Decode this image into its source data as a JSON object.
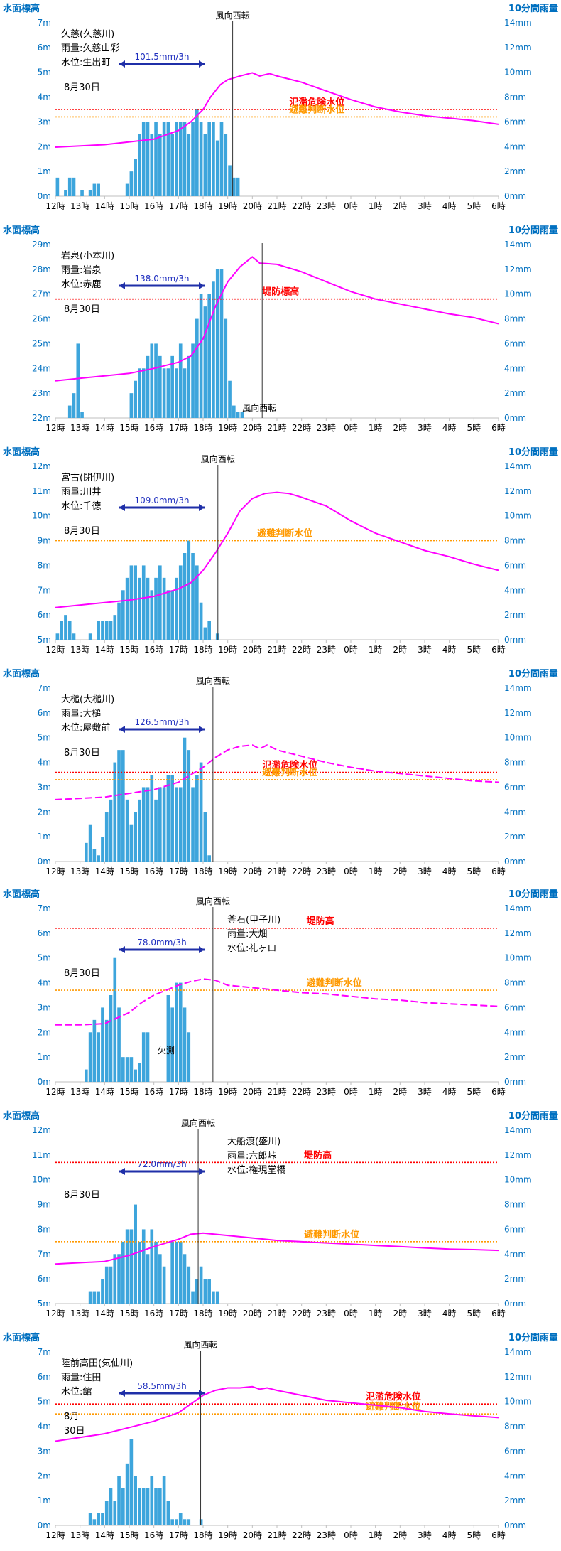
{
  "x_ticks": [
    "12時",
    "13時",
    "14時",
    "15時",
    "16時",
    "17時",
    "18時",
    "19時",
    "20時",
    "21時",
    "22時",
    "23時",
    "0時",
    "1時",
    "2時",
    "3時",
    "4時",
    "5時",
    "6時"
  ],
  "labels": {
    "wl_axis": "水面標高",
    "rain_axis": "10分間雨量",
    "wind": "風向西転",
    "date": "8月30日",
    "missing": "欠測"
  },
  "colors": {
    "bar": "#3da5dc",
    "level": "#ff00ff",
    "danger": "#ff0000",
    "judge": "#ff9900",
    "axis_title": "#0070c0",
    "arrow": "#1f2fa8",
    "rate": "#1f2fbf",
    "grid": "#d9d9d9"
  },
  "chart_data": [
    {
      "type": "bar",
      "station": [
        "久慈(久慈川)",
        "雨量:久慈山彩",
        "水位:生出町"
      ],
      "date_label": "8月30日",
      "rate_label": "101.5mm/3h",
      "wl_range": [
        0,
        7
      ],
      "wl_ticks": [
        "0m",
        "1m",
        "2m",
        "3m",
        "4m",
        "5m",
        "6m",
        "7m"
      ],
      "rain_range": [
        0,
        14
      ],
      "rain_ticks": [
        "0mm",
        "2mm",
        "4mm",
        "6mm",
        "8mm",
        "10mm",
        "12mm",
        "14mm"
      ],
      "rain_start_hour": 12.0,
      "rain_mm": [
        1.5,
        0,
        0.5,
        1.5,
        1.5,
        0,
        0.5,
        0,
        0.5,
        1,
        1,
        0,
        0,
        0,
        0,
        0,
        0,
        1,
        2,
        3,
        5,
        6,
        6,
        5,
        6,
        5,
        6,
        6,
        5,
        6,
        6,
        6,
        5,
        6,
        7,
        6,
        5,
        6,
        6,
        4.5,
        6,
        5,
        2.5,
        1.5,
        1.5
      ],
      "level": [
        [
          12,
          1.98
        ],
        [
          14,
          2.08
        ],
        [
          16,
          2.3
        ],
        [
          17,
          2.65
        ],
        [
          17.5,
          3.0
        ],
        [
          18,
          3.5
        ],
        [
          18.3,
          4.0
        ],
        [
          18.7,
          4.5
        ],
        [
          19,
          4.7
        ],
        [
          19.5,
          4.85
        ],
        [
          20,
          4.98
        ],
        [
          20.3,
          4.85
        ],
        [
          20.7,
          4.95
        ],
        [
          21,
          4.85
        ],
        [
          22,
          4.6
        ],
        [
          23,
          4.25
        ],
        [
          0,
          3.9
        ],
        [
          1,
          3.6
        ],
        [
          2,
          3.4
        ],
        [
          3,
          3.25
        ],
        [
          4,
          3.15
        ],
        [
          5,
          3.05
        ],
        [
          6,
          2.9
        ]
      ],
      "thresholds": [
        {
          "name": "氾濫危険水位",
          "value": 3.5,
          "color": "danger",
          "label_hour": 21.5
        },
        {
          "name": "避難判断水位",
          "value": 3.2,
          "color": "judge",
          "label_hour": 21.5
        }
      ],
      "wind_hour": 19.2
    },
    {
      "type": "bar",
      "station": [
        "岩泉(小本川)",
        "雨量:岩泉",
        "水位:赤鹿"
      ],
      "date_label": "8月30日",
      "rate_label": "138.0mm/3h",
      "wl_range": [
        22,
        29
      ],
      "wl_ticks": [
        "22m",
        "23m",
        "24m",
        "25m",
        "26m",
        "27m",
        "28m",
        "29m"
      ],
      "rain_range": [
        0,
        14
      ],
      "rain_ticks": [
        "0mm",
        "2mm",
        "4mm",
        "6mm",
        "8mm",
        "10mm",
        "12mm",
        "14mm"
      ],
      "rain_start_hour": 12.0,
      "rain_mm": [
        0,
        0,
        0,
        1,
        2,
        6,
        0.5,
        0,
        0,
        0,
        0,
        0,
        0,
        0,
        0,
        0,
        0,
        0,
        2,
        3,
        4,
        4,
        5,
        6,
        6,
        5,
        4,
        4,
        5,
        4,
        6,
        4,
        5,
        6,
        8,
        10,
        9,
        10,
        11,
        12,
        12,
        8,
        3,
        1,
        0.5,
        0.5
      ],
      "level": [
        [
          12,
          23.5
        ],
        [
          14,
          23.7
        ],
        [
          15,
          23.8
        ],
        [
          16,
          24.0
        ],
        [
          17,
          24.25
        ],
        [
          17.5,
          24.5
        ],
        [
          18,
          25.2
        ],
        [
          18.5,
          26.5
        ],
        [
          19,
          27.5
        ],
        [
          19.5,
          28.1
        ],
        [
          20,
          28.5
        ],
        [
          20.3,
          28.25
        ],
        [
          21,
          28.2
        ],
        [
          22,
          27.9
        ],
        [
          23,
          27.5
        ],
        [
          0,
          27.1
        ],
        [
          1,
          26.8
        ],
        [
          2,
          26.6
        ],
        [
          3,
          26.4
        ],
        [
          4,
          26.2
        ],
        [
          5,
          26.05
        ],
        [
          6,
          25.8
        ]
      ],
      "thresholds": [
        {
          "name": "堤防標高",
          "value": 26.8,
          "color": "danger",
          "label_hour": 20.4
        }
      ],
      "wind_hour": 20.4,
      "wind_label_below": true
    },
    {
      "type": "bar",
      "station": [
        "宮古(閉伊川)",
        "雨量:川井",
        "水位:千徳"
      ],
      "date_label": "8月30日",
      "rate_label": "109.0mm/3h",
      "wl_range": [
        5,
        12
      ],
      "wl_ticks": [
        "5m",
        "6m",
        "7m",
        "8m",
        "9m",
        "10m",
        "11m",
        "12m"
      ],
      "rain_range": [
        0,
        14
      ],
      "rain_ticks": [
        "0mm",
        "2mm",
        "4mm",
        "6mm",
        "8mm",
        "10mm",
        "12mm",
        "14mm"
      ],
      "rain_start_hour": 12.0,
      "rain_mm": [
        0.5,
        1.5,
        2,
        1.5,
        0.5,
        0,
        0,
        0,
        0.5,
        0,
        1.5,
        1.5,
        1.5,
        1.5,
        2,
        3,
        4,
        5,
        6,
        6,
        5,
        6,
        5,
        4,
        5,
        6,
        5,
        4,
        4,
        5,
        6,
        7,
        8,
        7,
        6,
        3,
        1,
        1.5,
        0,
        0.5
      ],
      "level": [
        [
          12,
          6.3
        ],
        [
          14,
          6.5
        ],
        [
          15,
          6.6
        ],
        [
          16,
          6.75
        ],
        [
          17,
          7.05
        ],
        [
          17.5,
          7.3
        ],
        [
          18,
          7.8
        ],
        [
          18.5,
          8.5
        ],
        [
          19,
          9.3
        ],
        [
          19.5,
          10.2
        ],
        [
          20,
          10.7
        ],
        [
          20.5,
          10.9
        ],
        [
          21,
          10.95
        ],
        [
          21.5,
          10.9
        ],
        [
          22,
          10.75
        ],
        [
          23,
          10.4
        ],
        [
          0,
          9.8
        ],
        [
          1,
          9.3
        ],
        [
          2,
          8.95
        ],
        [
          3,
          8.6
        ],
        [
          4,
          8.35
        ],
        [
          5,
          8.05
        ],
        [
          6,
          7.8
        ]
      ],
      "thresholds": [
        {
          "name": "避難判断水位",
          "value": 9.0,
          "color": "judge",
          "label_hour": 20.2
        }
      ],
      "wind_hour": 18.6
    },
    {
      "type": "bar",
      "station": [
        "大槌(大槌川)",
        "雨量:大槌",
        "水位:屋敷前"
      ],
      "date_label": "8月30日",
      "rate_label": "126.5mm/3h",
      "wl_range": [
        0,
        7
      ],
      "wl_ticks": [
        "0m",
        "1m",
        "2m",
        "3m",
        "4m",
        "5m",
        "6m",
        "7m"
      ],
      "rain_range": [
        0,
        14
      ],
      "rain_ticks": [
        "0mm",
        "2mm",
        "4mm",
        "6mm",
        "8mm",
        "10mm",
        "12mm",
        "14mm"
      ],
      "rain_start_hour": 12.0,
      "rain_mm": [
        0,
        0,
        0,
        0,
        0,
        0,
        0,
        1.5,
        3,
        1,
        0.5,
        2,
        4,
        5,
        8,
        9,
        9,
        5,
        3,
        4,
        5,
        6,
        6,
        7,
        5,
        6,
        6,
        7,
        7,
        6,
        6,
        10,
        9,
        6,
        7,
        8,
        4,
        0.5
      ],
      "level_dashed": true,
      "level": [
        [
          12,
          2.5
        ],
        [
          14,
          2.6
        ],
        [
          15,
          2.75
        ],
        [
          16,
          2.9
        ],
        [
          17,
          3.2
        ],
        [
          17.5,
          3.5
        ],
        [
          18,
          3.8
        ],
        [
          18.5,
          4.2
        ],
        [
          19,
          4.5
        ],
        [
          19.5,
          4.65
        ],
        [
          20,
          4.7
        ],
        [
          20.3,
          4.55
        ],
        [
          20.6,
          4.7
        ],
        [
          21,
          4.5
        ],
        [
          22,
          4.25
        ],
        [
          23,
          4.0
        ],
        [
          0,
          3.8
        ],
        [
          1,
          3.65
        ],
        [
          2,
          3.55
        ],
        [
          3,
          3.45
        ],
        [
          4,
          3.35
        ],
        [
          5,
          3.25
        ],
        [
          6,
          3.2
        ]
      ],
      "thresholds": [
        {
          "name": "氾濫危険水位",
          "value": 3.6,
          "color": "danger",
          "label_hour": 20.4
        },
        {
          "name": "避難判断水位",
          "value": 3.3,
          "color": "judge",
          "label_hour": 20.4
        }
      ],
      "wind_hour": 18.4
    },
    {
      "type": "bar",
      "station": [
        "釜石(甲子川)",
        "雨量:大畑",
        "水位:礼ヶロ"
      ],
      "date_label": "8月30日",
      "rate_label": "78.0mm/3h",
      "wl_range": [
        0,
        7
      ],
      "wl_ticks": [
        "0m",
        "1m",
        "2m",
        "3m",
        "4m",
        "5m",
        "6m",
        "7m"
      ],
      "rain_range": [
        0,
        14
      ],
      "rain_ticks": [
        "0mm",
        "2mm",
        "4mm",
        "6mm",
        "8mm",
        "10mm",
        "12mm",
        "14mm"
      ],
      "rain_start_hour": 12.0,
      "rain_mm": [
        0,
        0,
        0,
        0,
        0,
        0,
        0,
        1,
        4,
        5,
        4,
        6,
        5,
        7,
        10,
        6,
        2,
        2,
        2,
        1,
        1.5,
        4,
        4,
        0,
        0,
        0,
        0,
        7,
        6,
        8,
        8,
        6,
        4
      ],
      "missing_hour": 16.5,
      "level_dashed": true,
      "level": [
        [
          12,
          2.3
        ],
        [
          13,
          2.3
        ],
        [
          14,
          2.35
        ],
        [
          15,
          2.8
        ],
        [
          15.5,
          3.2
        ],
        [
          16,
          3.5
        ],
        [
          16.5,
          3.7
        ],
        [
          17,
          3.9
        ],
        [
          17.5,
          4.05
        ],
        [
          18,
          4.15
        ],
        [
          18.5,
          4.1
        ],
        [
          19,
          3.9
        ],
        [
          20,
          3.8
        ],
        [
          21,
          3.7
        ],
        [
          22,
          3.6
        ],
        [
          23,
          3.55
        ],
        [
          0,
          3.45
        ],
        [
          1,
          3.35
        ],
        [
          2,
          3.3
        ],
        [
          3,
          3.2
        ],
        [
          4,
          3.15
        ],
        [
          5,
          3.1
        ],
        [
          6,
          3.05
        ]
      ],
      "thresholds": [
        {
          "name": "堤防高",
          "value": 6.2,
          "color": "danger",
          "label_hour": 22.2
        },
        {
          "name": "避難判断水位",
          "value": 3.7,
          "color": "judge",
          "label_hour": 22.2
        }
      ],
      "wind_hour": 18.4
    },
    {
      "type": "bar",
      "station": [
        "大船渡(盛川)",
        "雨量:六郎峠",
        "水位:権現堂橋"
      ],
      "date_label": "8月30日",
      "rate_label": "72.0mm/3h",
      "wl_range": [
        5,
        12
      ],
      "wl_ticks": [
        "5m",
        "6m",
        "7m",
        "8m",
        "9m",
        "10m",
        "11m",
        "12m"
      ],
      "rain_range": [
        0,
        14
      ],
      "rain_ticks": [
        "0mm",
        "2mm",
        "4mm",
        "6mm",
        "8mm",
        "10mm",
        "12mm",
        "14mm"
      ],
      "rain_start_hour": 12.0,
      "rain_mm": [
        0,
        0,
        0,
        0,
        0,
        0,
        0,
        0,
        1,
        1,
        1,
        2,
        3,
        3,
        4,
        4,
        5,
        6,
        6,
        8,
        5,
        6,
        4,
        6,
        5,
        4,
        3,
        0,
        5,
        5,
        5,
        4,
        3,
        1,
        2,
        3,
        2,
        2,
        1,
        1
      ],
      "level": [
        [
          12,
          6.6
        ],
        [
          14,
          6.7
        ],
        [
          15,
          6.95
        ],
        [
          16,
          7.3
        ],
        [
          17,
          7.6
        ],
        [
          17.5,
          7.8
        ],
        [
          18,
          7.85
        ],
        [
          19,
          7.75
        ],
        [
          20,
          7.65
        ],
        [
          21,
          7.55
        ],
        [
          22,
          7.5
        ],
        [
          23,
          7.45
        ],
        [
          0,
          7.4
        ],
        [
          1,
          7.35
        ],
        [
          2,
          7.3
        ],
        [
          3,
          7.25
        ],
        [
          4,
          7.2
        ],
        [
          5,
          7.18
        ],
        [
          6,
          7.15
        ]
      ],
      "thresholds": [
        {
          "name": "堤防高",
          "value": 10.7,
          "color": "danger",
          "label_hour": 22.1
        },
        {
          "name": "避難判断水位",
          "value": 7.5,
          "color": "judge",
          "label_hour": 22.1
        }
      ],
      "wind_hour": 17.8
    },
    {
      "type": "bar",
      "station": [
        "陸前高田(気仙川)",
        "雨量:住田",
        "水位:舘"
      ],
      "date_label": "8月",
      "date_label_2": "30日",
      "rate_label": "58.5mm/3h",
      "wl_range": [
        0,
        7
      ],
      "wl_ticks": [
        "0m",
        "1m",
        "2m",
        "3m",
        "4m",
        "5m",
        "6m",
        "7m"
      ],
      "rain_range": [
        0,
        14
      ],
      "rain_ticks": [
        "0mm",
        "2mm",
        "4mm",
        "6mm",
        "8mm",
        "10mm",
        "12mm",
        "14mm"
      ],
      "rain_start_hour": 12.0,
      "rain_mm": [
        0,
        0,
        0,
        0,
        0,
        0,
        0,
        0,
        1,
        0.5,
        1,
        1,
        2,
        3,
        2,
        4,
        3,
        5,
        7,
        4,
        3,
        3,
        3,
        4,
        3,
        3,
        4,
        2,
        0.5,
        0.5,
        1,
        0.5,
        0.5,
        0,
        0,
        0.5
      ],
      "level": [
        [
          12,
          3.4
        ],
        [
          14,
          3.7
        ],
        [
          15,
          3.95
        ],
        [
          16,
          4.2
        ],
        [
          17,
          4.55
        ],
        [
          17.5,
          4.9
        ],
        [
          18,
          5.25
        ],
        [
          18.5,
          5.45
        ],
        [
          19,
          5.55
        ],
        [
          19.5,
          5.55
        ],
        [
          20,
          5.6
        ],
        [
          20.3,
          5.5
        ],
        [
          20.6,
          5.55
        ],
        [
          21,
          5.45
        ],
        [
          22,
          5.25
        ],
        [
          23,
          5.05
        ],
        [
          0,
          4.95
        ],
        [
          1,
          4.85
        ],
        [
          2,
          4.75
        ],
        [
          3,
          4.6
        ],
        [
          4,
          4.5
        ],
        [
          5,
          4.42
        ],
        [
          6,
          4.35
        ]
      ],
      "thresholds": [
        {
          "name": "氾濫危険水位",
          "value": 4.9,
          "color": "danger",
          "label_hour": 0.6
        },
        {
          "name": "避難判断水位",
          "value": 4.5,
          "color": "judge",
          "label_hour": 0.6
        }
      ],
      "wind_hour": 17.9
    }
  ]
}
